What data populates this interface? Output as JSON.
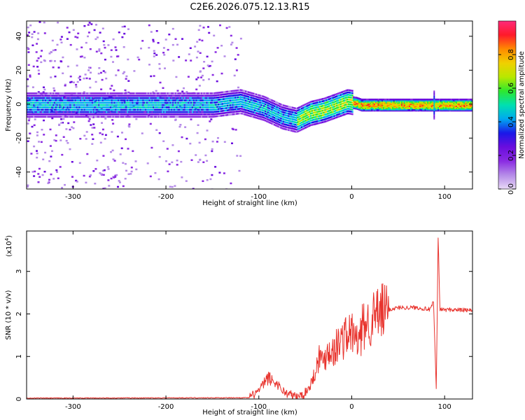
{
  "title": "C2E6.2026.075.12.13.R15",
  "colors": {
    "snr_line": "#e8332d",
    "colormap": [
      "#e8d9f6",
      "#b58be8",
      "#8a2be2",
      "#6a0dde",
      "#1a18e8",
      "#00a8f0",
      "#00e0b0",
      "#2ee82e",
      "#b8e800",
      "#f0d000",
      "#ff8a00",
      "#ff1a2a",
      "#ff2a7a"
    ]
  },
  "chart_data": [
    {
      "type": "heatmap",
      "xlabel": "Height of straight line (km)",
      "ylabel": "Frequency (Hz)",
      "xlim": [
        -350,
        130
      ],
      "ylim": [
        -50,
        49
      ],
      "xticks": [
        -300,
        -200,
        -100,
        0,
        100
      ],
      "xtick_labels": [
        "-300",
        "-200",
        "-100",
        "0",
        "100"
      ],
      "yticks": [
        -40,
        -20,
        0,
        20,
        40
      ],
      "ytick_labels": [
        "-40",
        "-20",
        "0",
        "20",
        "40"
      ],
      "colorbar": {
        "label": "Normalized spectral amplitude",
        "range": [
          0,
          1
        ],
        "ticks": [
          0.0,
          0.2,
          0.4,
          0.6,
          0.8
        ],
        "tick_labels": [
          "0.0",
          "0.2",
          "0.4",
          "0.6",
          "0.8"
        ]
      },
      "ridge": [
        {
          "x": -350,
          "f": 0
        },
        {
          "x": -150,
          "f": 0
        },
        {
          "x": -120,
          "f": 2
        },
        {
          "x": -95,
          "f": -2
        },
        {
          "x": -75,
          "f": -7
        },
        {
          "x": -60,
          "f": -9
        },
        {
          "x": -45,
          "f": -5
        },
        {
          "x": -30,
          "f": -3
        },
        {
          "x": -15,
          "f": 0
        },
        {
          "x": -5,
          "f": 2
        },
        {
          "x": 5,
          "f": 1
        },
        {
          "x": 10,
          "f": 0
        },
        {
          "x": 130,
          "f": 0
        }
      ]
    },
    {
      "type": "line",
      "xlabel": "Height of straight line (km)",
      "ylabel": "SNR (10 * v/v)",
      "multiplier": "(x10",
      "multiplier_exp": "4",
      "multiplier_close": ")",
      "xlim": [
        -350,
        130
      ],
      "ylim": [
        0,
        3.95
      ],
      "xticks": [
        -300,
        -200,
        -100,
        0,
        100
      ],
      "xtick_labels": [
        "-300",
        "-200",
        "-100",
        "0",
        "100"
      ],
      "yticks": [
        0,
        1,
        2,
        3
      ],
      "ytick_labels": [
        "0",
        "1",
        "2",
        "3"
      ],
      "series": [
        {
          "name": "SNR",
          "x": [
            -350,
            -110,
            -100,
            -90,
            -80,
            -72,
            -65,
            -60,
            -52,
            -45,
            -40,
            -35,
            -30,
            -25,
            -20,
            -15,
            -10,
            -5,
            0,
            8,
            12,
            20,
            30,
            40,
            50,
            60,
            70,
            80,
            85,
            88,
            91,
            93,
            95,
            100,
            110,
            130
          ],
          "y": [
            0.02,
            0.03,
            0.2,
            0.5,
            0.35,
            0.15,
            0.1,
            0.05,
            0.1,
            0.3,
            0.6,
            1.0,
            0.9,
            1.2,
            1.1,
            1.3,
            1.4,
            1.5,
            1.55,
            1.3,
            1.7,
            1.85,
            2.0,
            2.1,
            2.15,
            2.15,
            2.15,
            2.12,
            2.1,
            2.3,
            0.2,
            3.8,
            2.1,
            2.1,
            2.1,
            2.08
          ]
        }
      ]
    }
  ]
}
